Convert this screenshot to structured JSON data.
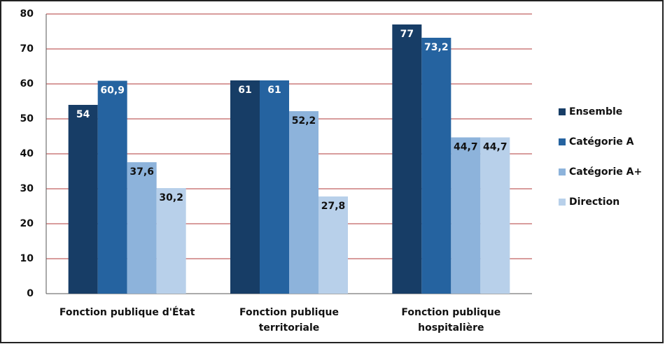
{
  "chart_data": {
    "type": "bar",
    "categories": [
      "Fonction publique d'État",
      "Fonction publique territoriale",
      "Fonction publique hospitalière"
    ],
    "series": [
      {
        "name": "Ensemble",
        "color": "#173d66",
        "label_color": "#ffffff",
        "values": [
          54,
          61,
          77
        ],
        "value_labels": [
          "54",
          "61",
          "77"
        ]
      },
      {
        "name": "Catégorie A",
        "color": "#2563a0",
        "label_color": "#ffffff",
        "values": [
          60.9,
          61,
          73.2
        ],
        "value_labels": [
          "60,9",
          "61",
          "73,2"
        ]
      },
      {
        "name": "Catégorie A+",
        "color": "#8db3db",
        "label_color": "#111111",
        "values": [
          37.6,
          52.2,
          44.7
        ],
        "value_labels": [
          "37,6",
          "52,2",
          "44,7"
        ]
      },
      {
        "name": "Direction",
        "color": "#b8d0ea",
        "label_color": "#111111",
        "values": [
          30.2,
          27.8,
          44.7
        ],
        "value_labels": [
          "30,2",
          "27,8",
          "44,7"
        ]
      }
    ],
    "ylim": [
      0,
      80
    ],
    "yticks": [
      0,
      10,
      20,
      30,
      40,
      50,
      60,
      70,
      80
    ],
    "grid": true,
    "grid_color": "#b03a3a",
    "legend": "right"
  }
}
